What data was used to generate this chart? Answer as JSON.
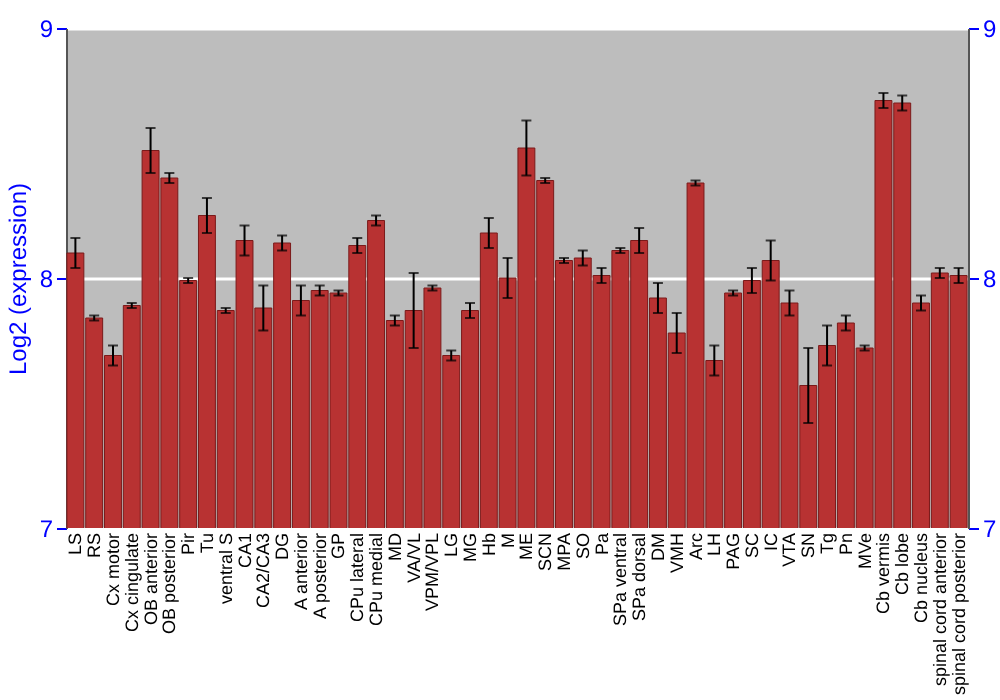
{
  "chart_data": {
    "type": "bar",
    "ylabel": "Log2 (expression)",
    "categories": [
      "LS",
      "RS",
      "Cx motor",
      "Cx cingulate",
      "OB anterior",
      "OB posterior",
      "Pir",
      "Tu",
      "ventral S",
      "CA1",
      "CA2/CA3",
      "DG",
      "A anterior",
      "A posterior",
      "GP",
      "CPu lateral",
      "CPu medial",
      "MD",
      "VA/VL",
      "VPM/VPL",
      "LG",
      "MG",
      "Hb",
      "M",
      "ME",
      "SCN",
      "MPA",
      "SO",
      "Pa",
      "SPa ventral",
      "SPa dorsal",
      "DM",
      "VMH",
      "Arc",
      "LH",
      "PAG",
      "SC",
      "IC",
      "VTA",
      "SN",
      "Tg",
      "Pn",
      "MVe",
      "Cb vermis",
      "Cb lobe",
      "Cb nucleus",
      "spinal cord anterior",
      "spinal cord posterior"
    ],
    "values": [
      8.1,
      7.84,
      7.69,
      7.89,
      8.51,
      8.4,
      7.99,
      8.25,
      7.87,
      8.15,
      7.88,
      8.14,
      7.91,
      7.95,
      7.94,
      8.13,
      8.23,
      7.83,
      7.87,
      7.96,
      7.69,
      7.87,
      8.18,
      8.0,
      8.52,
      8.39,
      8.07,
      8.08,
      8.01,
      8.11,
      8.15,
      7.92,
      7.78,
      8.38,
      7.67,
      7.94,
      7.99,
      8.07,
      7.9,
      7.57,
      7.73,
      7.82,
      7.72,
      8.71,
      8.7,
      7.9,
      8.02,
      8.01
    ],
    "errors": [
      0.06,
      0.01,
      0.04,
      0.01,
      0.09,
      0.02,
      0.01,
      0.07,
      0.01,
      0.06,
      0.09,
      0.03,
      0.06,
      0.02,
      0.01,
      0.03,
      0.02,
      0.02,
      0.15,
      0.01,
      0.02,
      0.03,
      0.06,
      0.08,
      0.11,
      0.01,
      0.01,
      0.03,
      0.03,
      0.01,
      0.05,
      0.06,
      0.08,
      0.01,
      0.06,
      0.01,
      0.05,
      0.08,
      0.05,
      0.15,
      0.08,
      0.03,
      0.01,
      0.03,
      0.03,
      0.03,
      0.02,
      0.03
    ],
    "color": "#b83232",
    "ylim": [
      7,
      9
    ],
    "yticks": [
      7,
      8,
      9
    ],
    "y2lim": [
      7,
      9
    ],
    "y2ticks": [
      7,
      8,
      9
    ],
    "grid": "y"
  }
}
